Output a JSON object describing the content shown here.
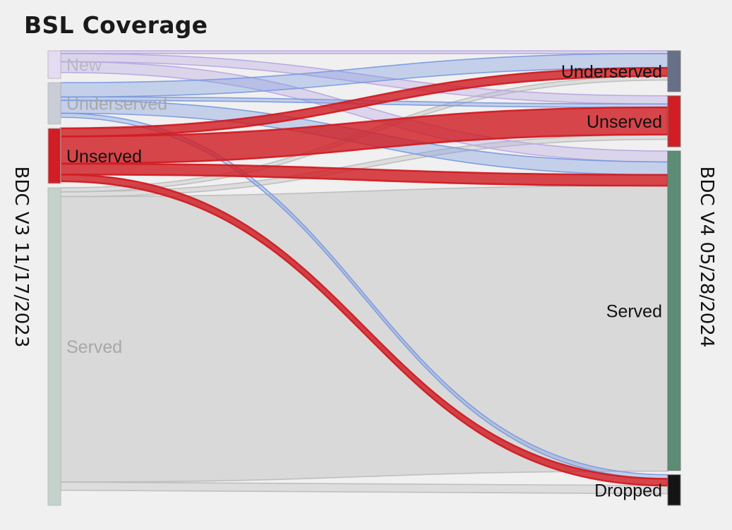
{
  "title": "BSL Coverage",
  "chart_data": {
    "type": "sankey",
    "title": "BSL Coverage",
    "left_axis_label": "BDC V3 11/17/2023",
    "right_axis_label": "BDC V4 05/28/2024",
    "left_nodes": [
      {
        "id": "new",
        "label": "New",
        "value": 4,
        "color": "#e4dcf3",
        "label_color": "#b8b8c8"
      },
      {
        "id": "underserved",
        "label": "Underserved",
        "value": 6,
        "color": "#c8cdd6",
        "label_color": "#a8a8a8"
      },
      {
        "id": "unserved",
        "label": "Unserved",
        "value": 8,
        "color": "#d01e24",
        "label_color": "#111111"
      },
      {
        "id": "served",
        "label": "Served",
        "value": 46,
        "color": "#c3d2cb",
        "label_color": "#a8a8a8"
      }
    ],
    "right_nodes": [
      {
        "id": "underserved",
        "label": "Underserved",
        "value": 6,
        "color": "#667188",
        "label_color": "#111111"
      },
      {
        "id": "unserved",
        "label": "Unserved",
        "value": 7.5,
        "color": "#d01e24",
        "label_color": "#111111"
      },
      {
        "id": "served",
        "label": "Served",
        "value": 47,
        "color": "#5b8c76",
        "label_color": "#111111"
      },
      {
        "id": "dropped",
        "label": "Dropped",
        "value": 4.5,
        "color": "#141414",
        "label_color": "#111111"
      }
    ],
    "flows": [
      {
        "from": "new",
        "to": "underserved",
        "value": 0.4,
        "type": "new"
      },
      {
        "from": "new",
        "to": "unserved",
        "value": 1.2,
        "type": "new"
      },
      {
        "from": "new",
        "to": "served",
        "value": 1.6,
        "type": "new"
      },
      {
        "from": "underserved",
        "to": "underserved",
        "value": 2.1,
        "type": "underserved"
      },
      {
        "from": "underserved",
        "to": "unserved",
        "value": 0.5,
        "type": "underserved"
      },
      {
        "from": "underserved",
        "to": "served",
        "value": 1.9,
        "type": "underserved"
      },
      {
        "from": "underserved",
        "to": "dropped",
        "value": 0.6,
        "type": "underserved"
      },
      {
        "from": "unserved",
        "to": "underserved",
        "value": 1.2,
        "type": "unserved"
      },
      {
        "from": "unserved",
        "to": "unserved",
        "value": 4.0,
        "type": "unserved"
      },
      {
        "from": "unserved",
        "to": "served",
        "value": 1.6,
        "type": "unserved"
      },
      {
        "from": "unserved",
        "to": "dropped",
        "value": 1.0,
        "type": "unserved"
      },
      {
        "from": "served",
        "to": "underserved",
        "value": 0.6,
        "type": "served"
      },
      {
        "from": "served",
        "to": "unserved",
        "value": 0.7,
        "type": "served"
      },
      {
        "from": "served",
        "to": "served",
        "value": 42,
        "type": "served"
      },
      {
        "from": "served",
        "to": "dropped",
        "value": 1.2,
        "type": "served"
      }
    ],
    "flow_colors": {
      "new": "#b9a8e2",
      "underserved": "#7b9be0",
      "unserved": "#d01e24",
      "served": "#bdbdbd"
    }
  }
}
